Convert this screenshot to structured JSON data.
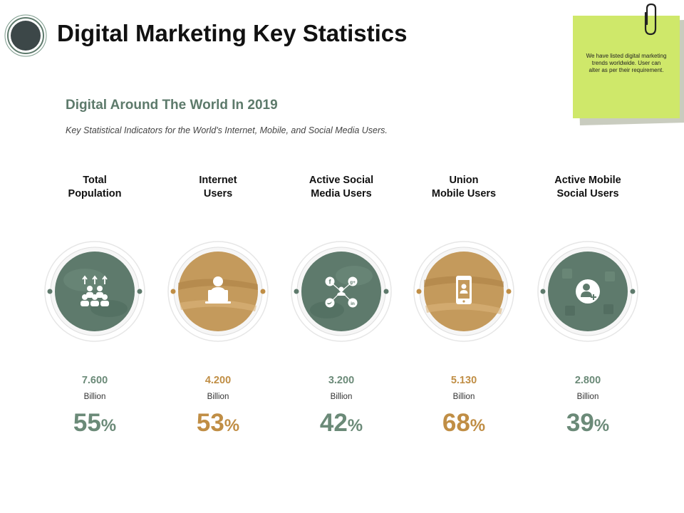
{
  "header": {
    "title": "Digital Marketing Key Statistics"
  },
  "intro": {
    "subtitle": "Digital Around The World In 2019",
    "description": "Key Statistical Indicators for the World's Internet, Mobile, and Social Media Users."
  },
  "sticky_note": {
    "text": "We have listed digital marketing trends worldwide.  User can alter as per  their requirement."
  },
  "colors": {
    "green": "#5e7a6c",
    "gold": "#c08e45",
    "sticky": "#cfe86a"
  },
  "stats": [
    {
      "label": "Total\nPopulation",
      "value": "7.600",
      "unit": "Billion",
      "percent": "55",
      "percent_sign": "%",
      "icon": "population-icon"
    },
    {
      "label": "Internet\nUsers",
      "value": "4.200",
      "unit": "Billion",
      "percent": "53",
      "percent_sign": "%",
      "icon": "laptop-user-icon"
    },
    {
      "label": "Active Social\nMedia Users",
      "value": "3.200",
      "unit": "Billion",
      "percent": "42",
      "percent_sign": "%",
      "icon": "social-network-icon"
    },
    {
      "label": "Union\nMobile Users",
      "value": "5.130",
      "unit": "Billion",
      "percent": "68",
      "percent_sign": "%",
      "icon": "mobile-user-icon"
    },
    {
      "label": "Active Mobile\nSocial Users",
      "value": "2.800",
      "unit": "Billion",
      "percent": "39",
      "percent_sign": "%",
      "icon": "add-user-icon"
    }
  ]
}
